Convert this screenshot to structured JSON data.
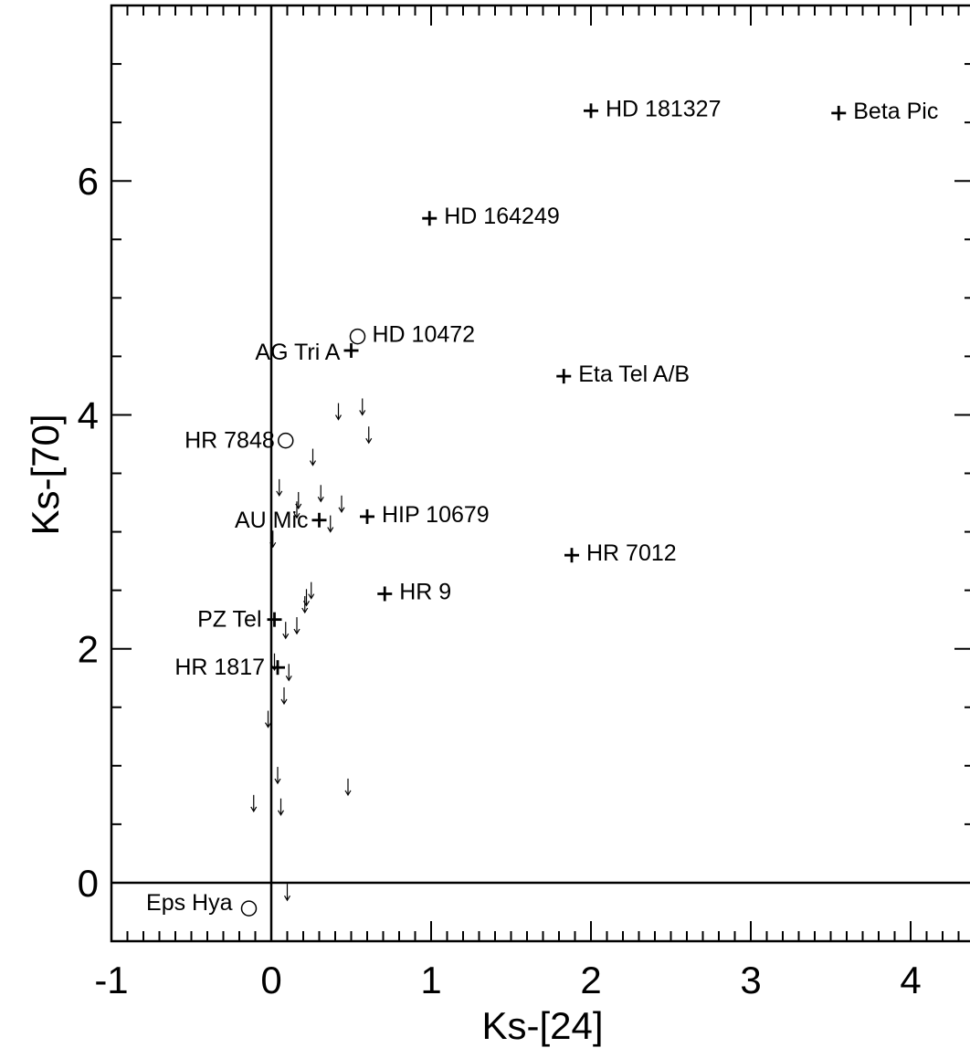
{
  "chart_data": {
    "type": "scatter",
    "title": "",
    "xlabel": "Ks-[24]",
    "ylabel": "Ks-[70]",
    "xlim": [
      -1,
      4.4
    ],
    "ylim": [
      -0.5,
      7.5
    ],
    "x_ticks": [
      -1,
      0,
      1,
      2,
      3,
      4
    ],
    "x_tick_labels": [
      "-1",
      "0",
      "1",
      "2",
      "3",
      "4"
    ],
    "y_ticks": [
      0,
      2,
      4,
      6
    ],
    "y_tick_labels": [
      "0",
      "2",
      "4",
      "6"
    ],
    "reference_lines": {
      "x": 0,
      "y": 0
    },
    "grid": false,
    "series": [
      {
        "marker": "plus",
        "points": [
          {
            "x": 2.0,
            "y": 6.6,
            "label": "HD 181327"
          },
          {
            "x": 3.55,
            "y": 6.58,
            "label": "Beta Pic"
          },
          {
            "x": 0.99,
            "y": 5.68,
            "label": "HD 164249"
          },
          {
            "x": 0.5,
            "y": 4.55,
            "label": "AG Tri A"
          },
          {
            "x": 1.83,
            "y": 4.33,
            "label": "Eta Tel A/B"
          },
          {
            "x": 0.3,
            "y": 3.1,
            "label": "AU Mic"
          },
          {
            "x": 0.6,
            "y": 3.13,
            "label": "HIP 10679"
          },
          {
            "x": 1.88,
            "y": 2.8,
            "label": "HR 7012"
          },
          {
            "x": 0.71,
            "y": 2.47,
            "label": "HR 9"
          },
          {
            "x": 0.02,
            "y": 2.25,
            "label": "PZ Tel"
          },
          {
            "x": 0.04,
            "y": 1.84,
            "label": "HR 1817"
          }
        ]
      },
      {
        "marker": "circle",
        "points": [
          {
            "x": 0.54,
            "y": 4.67,
            "label": "HD 10472"
          },
          {
            "x": 0.09,
            "y": 3.78,
            "label": "HR 7848"
          },
          {
            "x": -0.14,
            "y": -0.22,
            "label": "Eps Hya"
          }
        ]
      },
      {
        "marker": "upper-limit-arrow",
        "points": [
          {
            "x": 0.57,
            "y": 4.07
          },
          {
            "x": 0.42,
            "y": 4.03
          },
          {
            "x": 0.61,
            "y": 3.83
          },
          {
            "x": 0.26,
            "y": 3.64
          },
          {
            "x": 0.05,
            "y": 3.38
          },
          {
            "x": 0.31,
            "y": 3.33
          },
          {
            "x": 0.17,
            "y": 3.27
          },
          {
            "x": 0.44,
            "y": 3.24
          },
          {
            "x": 0.16,
            "y": 3.19
          },
          {
            "x": 0.37,
            "y": 3.07
          },
          {
            "x": 0.01,
            "y": 2.94
          },
          {
            "x": 0.25,
            "y": 2.5
          },
          {
            "x": 0.22,
            "y": 2.44
          },
          {
            "x": 0.21,
            "y": 2.38
          },
          {
            "x": 0.16,
            "y": 2.2
          },
          {
            "x": 0.09,
            "y": 2.16
          },
          {
            "x": 0.02,
            "y": 1.89
          },
          {
            "x": 0.11,
            "y": 1.8
          },
          {
            "x": 0.08,
            "y": 1.6
          },
          {
            "x": -0.02,
            "y": 1.4
          },
          {
            "x": 0.04,
            "y": 0.92
          },
          {
            "x": 0.48,
            "y": 0.82
          },
          {
            "x": -0.11,
            "y": 0.68
          },
          {
            "x": 0.06,
            "y": 0.65
          },
          {
            "x": 0.1,
            "y": -0.08
          }
        ]
      }
    ]
  }
}
